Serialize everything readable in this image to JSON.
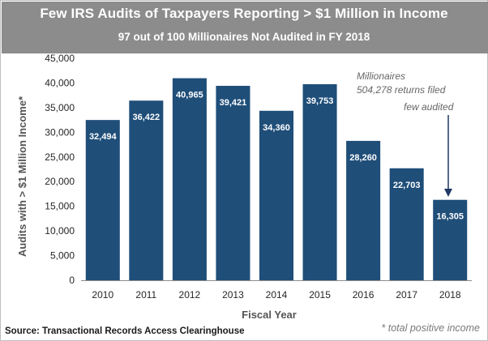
{
  "title": "Few IRS Audits of Taxpayers Reporting > $1 Million in Income",
  "subtitle": "97 out of 100 Millionaires Not Audited in FY 2018",
  "source": "Source: Transactional Records Access Clearinghouse",
  "footnote": "* total positive income",
  "annotations": {
    "line1": "Millionaires",
    "line2": "504,278 returns filed",
    "line3": "few audited"
  },
  "colors": {
    "bar": "#1f4e79",
    "header": "#8c8c8c",
    "arrow": "#1f3864"
  },
  "chart_data": {
    "type": "bar",
    "title": "Few IRS Audits of Taxpayers Reporting > $1 Million in Income",
    "subtitle": "97 out of 100 Millionaires Not Audited in FY 2018",
    "xlabel": "Fiscal Year",
    "ylabel": "Audits with > $1 Million Income*",
    "categories": [
      "2010",
      "2011",
      "2012",
      "2013",
      "2014",
      "2015",
      "2016",
      "2017",
      "2018"
    ],
    "values": [
      32494,
      36422,
      40965,
      39421,
      34360,
      39753,
      28260,
      22703,
      16305
    ],
    "value_labels": [
      "32,494",
      "36,422",
      "40,965",
      "39,421",
      "34,360",
      "39,753",
      "28,260",
      "22,703",
      "16,305"
    ],
    "ylim": [
      0,
      45000
    ],
    "yticks": [
      0,
      5000,
      10000,
      15000,
      20000,
      25000,
      30000,
      35000,
      40000,
      45000
    ],
    "ytick_labels": [
      "0",
      "5,000",
      "10,000",
      "15,000",
      "20,000",
      "25,000",
      "30,000",
      "35,000",
      "40,000",
      "45,000"
    ],
    "grid": false,
    "legend": "none"
  }
}
